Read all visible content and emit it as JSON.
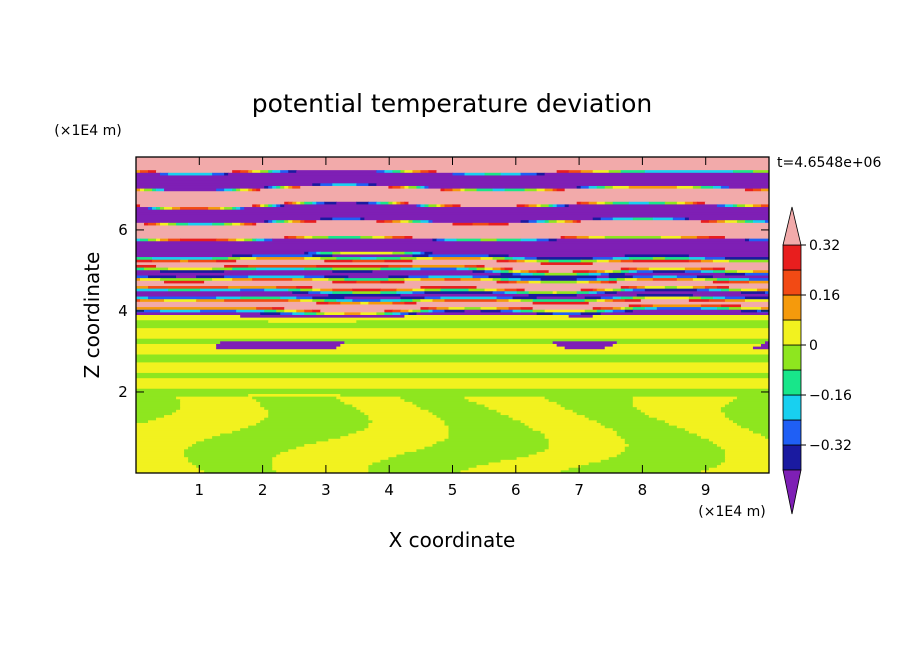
{
  "chart_data": {
    "type": "heatmap",
    "title": "potential temperature deviation",
    "xlabel": "X coordinate",
    "ylabel": "Z coordinate",
    "x_unit": "(×1E4 m)",
    "y_unit": "(×1E4 m)",
    "time_label": "t=4.6548e+06",
    "xlim": [
      0,
      10
    ],
    "ylim": [
      0,
      7.8
    ],
    "x_ticks": [
      1,
      2,
      3,
      4,
      5,
      6,
      7,
      8,
      9
    ],
    "y_ticks": [
      2,
      4,
      6
    ],
    "x_tick_labels": [
      "1",
      "2",
      "3",
      "4",
      "5",
      "6",
      "7",
      "8",
      "9"
    ],
    "y_tick_labels": [
      "2",
      "4",
      "6"
    ],
    "colorbar": {
      "levels": [
        -0.4,
        -0.32,
        -0.24,
        -0.16,
        -0.08,
        0,
        0.08,
        0.16,
        0.24,
        0.32,
        0.4
      ],
      "colors_low_to_high": [
        "#7e1fb5",
        "#1a1aa0",
        "#1f5ff5",
        "#18d0f0",
        "#18e68a",
        "#8ee61f",
        "#f2f21f",
        "#f59a0c",
        "#f24a14",
        "#e81e1e",
        "#f2aaaa"
      ],
      "tick_values": [
        -0.32,
        -0.16,
        0,
        0.16,
        0.32
      ],
      "tick_labels": [
        "−0.32",
        "−0.16",
        "0",
        "0.16",
        "0.32"
      ],
      "extend": "both"
    },
    "bands": [
      {
        "z_min": 0.0,
        "z_max": 1.9,
        "description": "mixed green / lime eddies"
      },
      {
        "z_min": 1.9,
        "z_max": 3.9,
        "description": "lime / green horizontal layers"
      },
      {
        "z_min": 3.9,
        "z_max": 5.4,
        "description": "turbulent multi-colour layers"
      },
      {
        "z_min": 5.4,
        "z_max": 7.8,
        "description": "alternating pink / purple layers"
      }
    ]
  }
}
